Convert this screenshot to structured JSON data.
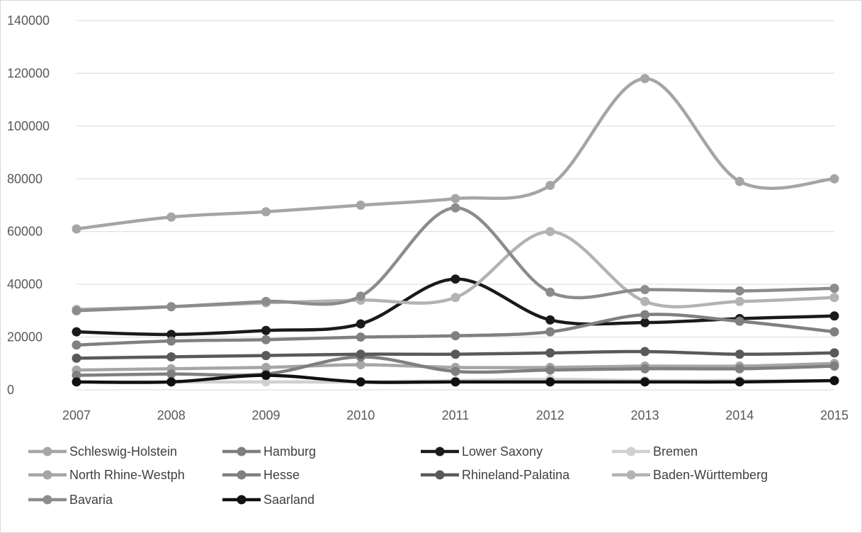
{
  "chart_data": {
    "type": "line",
    "smooth": true,
    "markers": true,
    "x": [
      2007,
      2008,
      2009,
      2010,
      2011,
      2012,
      2013,
      2014,
      2015
    ],
    "ylim": [
      0,
      140000
    ],
    "yticks": [
      0,
      20000,
      40000,
      60000,
      80000,
      100000,
      120000,
      140000
    ],
    "grid": "horizontal",
    "legend_position": "bottom",
    "series": [
      {
        "name": "Schleswig-Holstein",
        "color": "#a6a6a6",
        "values": [
          7500,
          8000,
          8500,
          9500,
          8500,
          8500,
          9000,
          9000,
          10000
        ]
      },
      {
        "name": "Hamburg",
        "color": "#7f7f7f",
        "values": [
          5500,
          6000,
          6000,
          12500,
          7000,
          7500,
          8000,
          8000,
          9000
        ]
      },
      {
        "name": "Lower Saxony",
        "color": "#1a1a1a",
        "values": [
          22000,
          21000,
          22500,
          25000,
          42000,
          26500,
          25500,
          27000,
          28000
        ]
      },
      {
        "name": "Bremen",
        "color": "#d0d0d0",
        "values": [
          3000,
          3000,
          3000,
          3000,
          3500,
          4000,
          3500,
          3500,
          3500
        ]
      },
      {
        "name": "North Rhine-Westph",
        "color": "#a5a5a5",
        "values": [
          61000,
          65500,
          67500,
          70000,
          72500,
          77500,
          118000,
          79000,
          80000
        ]
      },
      {
        "name": "Hesse",
        "color": "#808080",
        "values": [
          17000,
          18500,
          19000,
          20000,
          20500,
          22000,
          28500,
          26000,
          22000
        ]
      },
      {
        "name": "Rhineland-Palatina",
        "color": "#595959",
        "values": [
          12000,
          12500,
          13000,
          13500,
          13500,
          14000,
          14500,
          13500,
          14000
        ]
      },
      {
        "name": "Baden-Württemberg",
        "color": "#b3b3b3",
        "values": [
          30500,
          31500,
          33000,
          34000,
          35000,
          60000,
          33500,
          33500,
          35000
        ]
      },
      {
        "name": "Bavaria",
        "color": "#8c8c8c",
        "values": [
          30000,
          31500,
          33500,
          35500,
          69000,
          37000,
          38000,
          37500,
          38500
        ]
      },
      {
        "name": "Saarland",
        "color": "#111111",
        "values": [
          3000,
          3000,
          5500,
          3000,
          3000,
          3000,
          3000,
          3000,
          3500
        ]
      }
    ]
  }
}
